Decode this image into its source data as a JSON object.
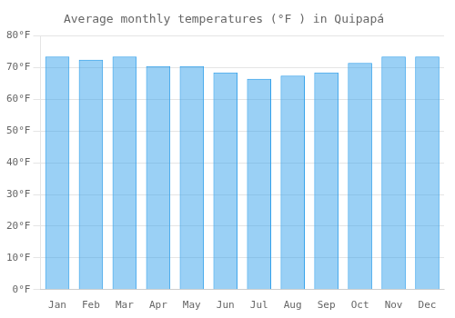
{
  "chart_data": {
    "type": "bar",
    "title": "Average monthly temperatures (°F ) in Quipapá",
    "categories": [
      "Jan",
      "Feb",
      "Mar",
      "Apr",
      "May",
      "Jun",
      "Jul",
      "Aug",
      "Sep",
      "Oct",
      "Nov",
      "Dec"
    ],
    "values": [
      73.5,
      72.5,
      73.5,
      70.5,
      70.5,
      68.5,
      66.5,
      67.5,
      68.5,
      71.5,
      73.5,
      73.5
    ],
    "ylim": [
      0,
      80
    ],
    "yticks": [
      {
        "value": 0,
        "label": "0°F"
      },
      {
        "value": 10,
        "label": "10°F"
      },
      {
        "value": 20,
        "label": "20°F"
      },
      {
        "value": 30,
        "label": "30°F"
      },
      {
        "value": 40,
        "label": "40°F"
      },
      {
        "value": 50,
        "label": "50°F"
      },
      {
        "value": 60,
        "label": "60°F"
      },
      {
        "value": 70,
        "label": "70°F"
      },
      {
        "value": 80,
        "label": "80°F"
      }
    ],
    "grid": true
  }
}
